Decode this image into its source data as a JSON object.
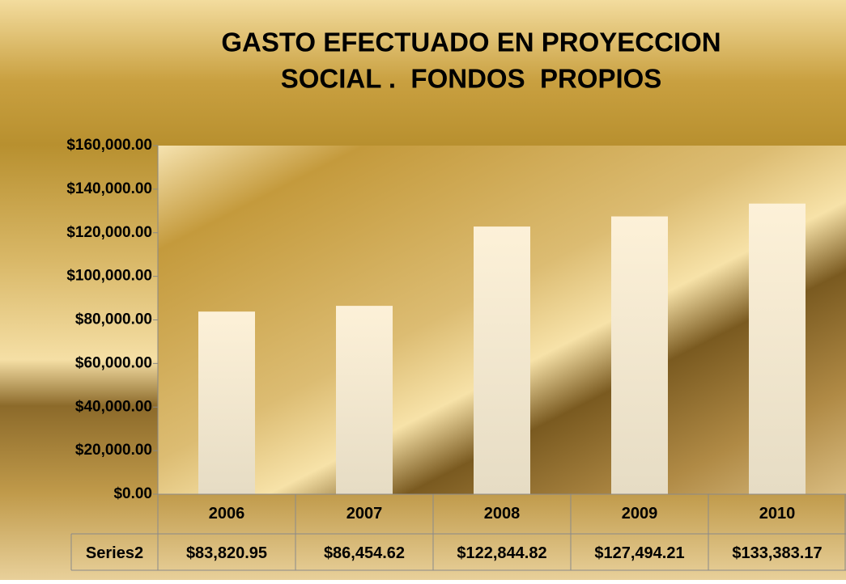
{
  "chart_data": {
    "type": "bar",
    "title": [
      "GASTO EFECTUADO EN PROYECCION",
      "SOCIAL .  FONDOS  PROPIOS"
    ],
    "categories": [
      "2006",
      "2007",
      "2008",
      "2009",
      "2010"
    ],
    "series": [
      {
        "name": "Series2",
        "color": "#f7ecd2",
        "values": [
          83820.95,
          86454.62,
          122844.82,
          127494.21,
          133383.17
        ],
        "value_labels": [
          "$83,820.95",
          "$86,454.62",
          "$122,844.82",
          "$127,494.21",
          "$133,383.17"
        ]
      }
    ],
    "ylim": [
      0,
      160000
    ],
    "yticks": [
      {
        "value": 0,
        "label": "$0.00"
      },
      {
        "value": 20000,
        "label": "$20,000.00"
      },
      {
        "value": 40000,
        "label": "$40,000.00"
      },
      {
        "value": 60000,
        "label": "$60,000.00"
      },
      {
        "value": 80000,
        "label": "$80,000.00"
      },
      {
        "value": 100000,
        "label": "$100,000.00"
      },
      {
        "value": 120000,
        "label": "$120,000.00"
      },
      {
        "value": 140000,
        "label": "$140,000.00"
      },
      {
        "value": 160000,
        "label": "$160,000.00"
      }
    ],
    "data_table": true
  }
}
